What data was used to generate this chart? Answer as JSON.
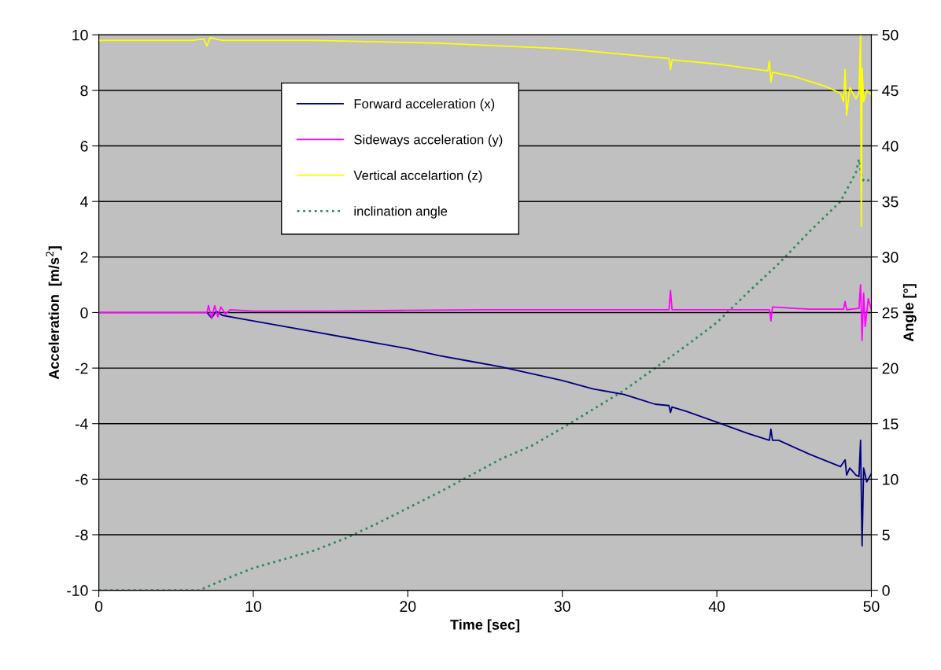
{
  "chart_data": {
    "type": "line",
    "xlabel": "Time [sec]",
    "ylabel": "Acceleration  [m/s$^{2}$]",
    "y2label": "Angle [°]",
    "xlim": [
      0,
      50
    ],
    "xticks": [
      0,
      10,
      20,
      30,
      40,
      50
    ],
    "ylim": [
      -10,
      10
    ],
    "yticks": [
      -10,
      -8,
      -6,
      -4,
      -2,
      0,
      2,
      4,
      6,
      8,
      10
    ],
    "y2lim": [
      0,
      50
    ],
    "y2ticks": [
      0,
      5,
      10,
      15,
      20,
      25,
      30,
      35,
      40,
      45,
      50
    ],
    "grid": "y",
    "legend": "top",
    "marker": "none",
    "series": [
      {
        "name": "Forward acceleration (x)",
        "color": "#000080",
        "line_style": "solid",
        "x": [
          7,
          7.3,
          7.6,
          8,
          9,
          10,
          12,
          14,
          16,
          18,
          20,
          22,
          24,
          26,
          28,
          30,
          32,
          34,
          36,
          36.9,
          37,
          37.1,
          38,
          40,
          42,
          43.4,
          43.5,
          43.6,
          44,
          46,
          48,
          48.3,
          48.4,
          48.6,
          49,
          49.2,
          49.3,
          49.4,
          49.5,
          49.7,
          50
        ],
        "values": [
          0,
          -0.2,
          0.05,
          -0.1,
          -0.2,
          -0.3,
          -0.5,
          -0.7,
          -0.9,
          -1.1,
          -1.3,
          -1.55,
          -1.75,
          -1.95,
          -2.2,
          -2.45,
          -2.75,
          -2.95,
          -3.3,
          -3.35,
          -3.6,
          -3.4,
          -3.55,
          -3.95,
          -4.35,
          -4.6,
          -4.2,
          -4.6,
          -4.6,
          -5.1,
          -5.55,
          -5.3,
          -5.85,
          -5.6,
          -5.85,
          -5.9,
          -4.6,
          -8.4,
          -5.6,
          -6.1,
          -5.8
        ]
      },
      {
        "name": "Sideways acceleration (y)",
        "color": "#ff00ff",
        "line_style": "solid",
        "x": [
          0,
          3,
          6,
          7,
          7.1,
          7.3,
          7.5,
          7.7,
          7.9,
          8.2,
          8.5,
          10,
          15,
          20,
          25,
          30,
          36.9,
          37,
          37.1,
          40,
          43.4,
          43.5,
          43.6,
          46,
          48.2,
          48.3,
          48.4,
          49.2,
          49.3,
          49.4,
          49.5,
          49.6,
          49.8,
          50
        ],
        "values": [
          0,
          0,
          0,
          0,
          0.25,
          -0.2,
          0.25,
          -0.15,
          0.2,
          -0.05,
          0.1,
          0.05,
          0.05,
          0.08,
          0.1,
          0.1,
          0.1,
          0.8,
          0.1,
          0.1,
          0.1,
          -0.3,
          0.2,
          0.12,
          0.12,
          0.4,
          0.1,
          0.15,
          1.0,
          -1.0,
          0.7,
          -0.5,
          0.5,
          0.1
        ]
      },
      {
        "name": "Vertical accelartion (z)",
        "color": "#ffff00",
        "line_style": "solid",
        "x": [
          0,
          3,
          6,
          6.8,
          7,
          7.2,
          8,
          10,
          14,
          18,
          22,
          26,
          30,
          34,
          36.9,
          37,
          37.1,
          40,
          43.3,
          43.4,
          43.5,
          43.6,
          45,
          47,
          48,
          48.2,
          48.3,
          48.4,
          48.6,
          49,
          49.2,
          49.3,
          49.35,
          49.4,
          49.5,
          49.7,
          50
        ],
        "values": [
          9.8,
          9.8,
          9.8,
          9.85,
          9.6,
          9.9,
          9.8,
          9.8,
          9.8,
          9.75,
          9.7,
          9.6,
          9.5,
          9.3,
          9.15,
          8.75,
          9.1,
          8.95,
          8.7,
          9.05,
          8.3,
          8.65,
          8.5,
          8.15,
          7.9,
          7.6,
          8.75,
          7.1,
          8.1,
          7.7,
          7.9,
          10.0,
          3.1,
          8.8,
          7.6,
          8.0,
          7.85
        ]
      },
      {
        "name": "inclination angle",
        "color": "#2e8b57",
        "line_style": "dotted",
        "axis": "y2",
        "x": [
          0,
          6.5,
          8,
          10,
          12,
          14,
          16,
          18,
          20,
          22,
          24,
          26,
          28,
          30,
          32,
          34,
          36,
          38,
          40,
          42,
          44,
          46,
          48,
          49,
          49.2,
          49.4,
          49.6,
          50
        ],
        "values": [
          0,
          0,
          0.9,
          2.0,
          2.8,
          3.6,
          4.7,
          6.0,
          7.4,
          8.8,
          10.3,
          11.8,
          13.0,
          14.6,
          16.3,
          18.0,
          20.0,
          22.0,
          24.1,
          26.8,
          29.4,
          32.3,
          35.0,
          37.6,
          38.8,
          37.0,
          36.8,
          37.0
        ]
      }
    ]
  }
}
